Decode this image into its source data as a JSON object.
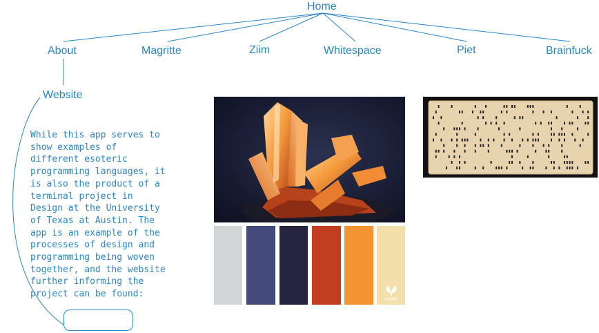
{
  "nav": {
    "home": "Home",
    "items": [
      "About",
      "Magritte",
      "Ziim",
      "Whitespace",
      "Piet",
      "Brainfuck"
    ],
    "sub_item": "Website"
  },
  "about": {
    "description": "While this app serves to\nshow examples of\ndifferent esoteric\nprogramming languages, it\nis also the product of a\nterminal project in\nDesign at the University\nof Texas at Austin. The\napp is an example of the\nprocesses of design and\nprogramming being woven\ntogether, and the website\nfurther informing the\nproject can be found:",
    "link_button_label": ""
  },
  "palette": {
    "colors": [
      "#d0d5d6",
      "#434b7d",
      "#27253d",
      "#c33e21",
      "#f39533",
      "#f2dfac"
    ],
    "logo_text": "seeds"
  },
  "colors": {
    "accent": "#2a85c4",
    "line": "#2a85c4",
    "background": "#ffffff"
  }
}
